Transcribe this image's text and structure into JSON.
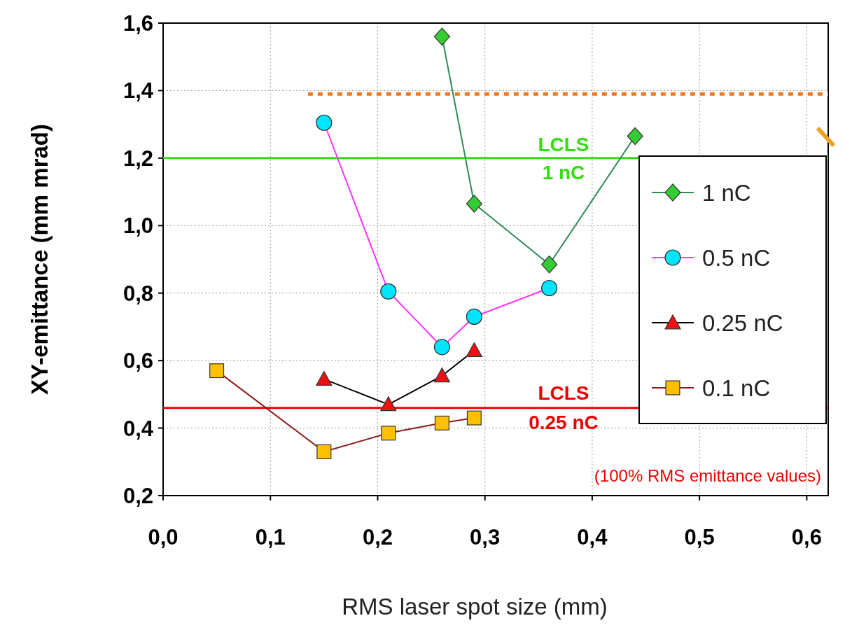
{
  "chart_data": {
    "type": "line",
    "xlabel": "RMS laser spot size  (mm)",
    "ylabel": "XY-emittance  (mm mrad)",
    "xlim": [
      0,
      0.62
    ],
    "ylim": [
      0.2,
      1.6
    ],
    "xticks": [
      {
        "value": 0,
        "label": "0,0"
      },
      {
        "value": 0.1,
        "label": "0,1"
      },
      {
        "value": 0.2,
        "label": "0,2"
      },
      {
        "value": 0.3,
        "label": "0,3"
      },
      {
        "value": 0.4,
        "label": "0,4"
      },
      {
        "value": 0.5,
        "label": "0,5"
      },
      {
        "value": 0.6,
        "label": "0,6"
      }
    ],
    "yticks": [
      {
        "value": 0.2,
        "label": "0,2"
      },
      {
        "value": 0.4,
        "label": "0,4"
      },
      {
        "value": 0.6,
        "label": "0,6"
      },
      {
        "value": 0.8,
        "label": "0,8"
      },
      {
        "value": 1.0,
        "label": "1,0"
      },
      {
        "value": 1.2,
        "label": "1,2"
      },
      {
        "value": 1.4,
        "label": "1,4"
      },
      {
        "value": 1.6,
        "label": "1,6"
      }
    ],
    "grid": true,
    "legend": "right",
    "series": [
      {
        "name": "1 nC",
        "color": "#2e8b57",
        "colors": [
          "#33cc33",
          "#33cc33",
          "#33cc33",
          "#33cc33"
        ],
        "marker": "diamond",
        "x": [
          0.26,
          0.29,
          0.36,
          0.44
        ],
        "values": [
          1.56,
          1.065,
          0.885,
          1.265
        ]
      },
      {
        "name": "0.5 nC",
        "color": "#ff33ff",
        "colors": [
          "#00e5ff",
          "#00e5ff",
          "#00e5ff",
          "#00e5ff",
          "#00e5ff"
        ],
        "marker": "circle",
        "x": [
          0.15,
          0.21,
          0.26,
          0.29,
          0.36
        ],
        "values": [
          1.305,
          0.805,
          0.64,
          0.73,
          0.815
        ]
      },
      {
        "name": "0.25 nC",
        "color": "#000000",
        "colors": [
          "#ee1111",
          "#ee1111",
          "#ee1111",
          "#ee1111"
        ],
        "marker": "triangle",
        "x": [
          0.15,
          0.21,
          0.26,
          0.29
        ],
        "values": [
          0.545,
          0.47,
          0.555,
          0.63
        ]
      },
      {
        "name": "0.1 nC",
        "color": "#8b1a1a",
        "colors": [
          "#ffc000",
          "#ffc000",
          "#ffc000",
          "#ffc000",
          "#ffc000"
        ],
        "marker": "square",
        "x": [
          0.05,
          0.15,
          0.21,
          0.26,
          0.29
        ],
        "values": [
          0.57,
          0.33,
          0.385,
          0.415,
          0.43
        ]
      },
      {
        "color": "#f07820",
        "marker": "none",
        "line_style": "dotted",
        "x": [
          0.135,
          0.62
        ],
        "values": [
          1.39,
          1.39
        ]
      }
    ],
    "ref_lines": [
      {
        "axis": "y",
        "value": 1.2,
        "label": "LCLS\n1 nC",
        "color": "#33dd11"
      },
      {
        "axis": "y",
        "value": 0.46,
        "label": "LCLS\n0.25 nC",
        "color": "#ee0000"
      }
    ],
    "annotations": [
      "(100% RMS emittance values)"
    ]
  }
}
